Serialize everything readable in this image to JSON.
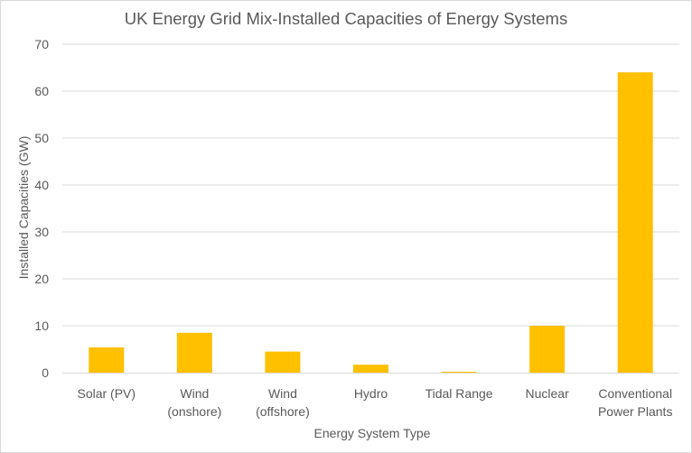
{
  "chart_data": {
    "type": "bar",
    "title": "UK Energy Grid Mix-Installed Capacities of Energy Systems",
    "xlabel": "Energy System Type",
    "ylabel": "Installed Capacities (GW)",
    "ylim": [
      0,
      70
    ],
    "yticks": [
      "0",
      "10",
      "20",
      "30",
      "40",
      "50",
      "60",
      "70"
    ],
    "grid": true,
    "bar_color": "#FFC000",
    "gridline_color": "#d9d9d9",
    "categories": [
      [
        "Solar (PV)"
      ],
      [
        "Wind",
        "(onshore)"
      ],
      [
        "Wind",
        "(offshore)"
      ],
      [
        "Hydro"
      ],
      [
        "Tidal Range"
      ],
      [
        "Nuclear"
      ],
      [
        "Conventional",
        "Power Plants"
      ]
    ],
    "values": [
      5.4,
      8.5,
      4.5,
      1.7,
      0.2,
      10.0,
      64.0
    ]
  }
}
